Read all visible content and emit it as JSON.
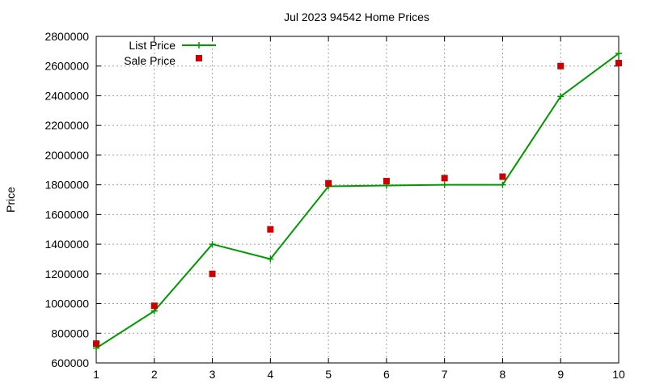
{
  "chart_data": {
    "type": "line",
    "title": "Jul 2023 94542 Home Prices",
    "xlabel": "",
    "ylabel": "Price",
    "x": [
      1,
      2,
      3,
      4,
      5,
      6,
      7,
      8,
      9,
      10
    ],
    "xlim": [
      1,
      10
    ],
    "ylim": [
      600000,
      2800000
    ],
    "xticks": [
      "1",
      "2",
      "3",
      "4",
      "5",
      "6",
      "7",
      "8",
      "9",
      "10"
    ],
    "yticks": [
      "600000",
      "800000",
      "1000000",
      "1200000",
      "1400000",
      "1600000",
      "1800000",
      "2000000",
      "2200000",
      "2400000",
      "2600000",
      "2800000"
    ],
    "grid": true,
    "legend_position": "top-left",
    "series": [
      {
        "name": "List Price",
        "kind": "line",
        "marker": "plus",
        "color": "#009900",
        "values": [
          700000,
          950000,
          1400000,
          1300000,
          1790000,
          1795000,
          1800000,
          1800000,
          2395000,
          2685000
        ]
      },
      {
        "name": "Sale Price",
        "kind": "points",
        "marker": "square",
        "color": "#cc0000",
        "values": [
          730000,
          985000,
          1200000,
          1500000,
          1810000,
          1825000,
          1845000,
          1855000,
          2600000,
          2620000
        ]
      }
    ]
  }
}
